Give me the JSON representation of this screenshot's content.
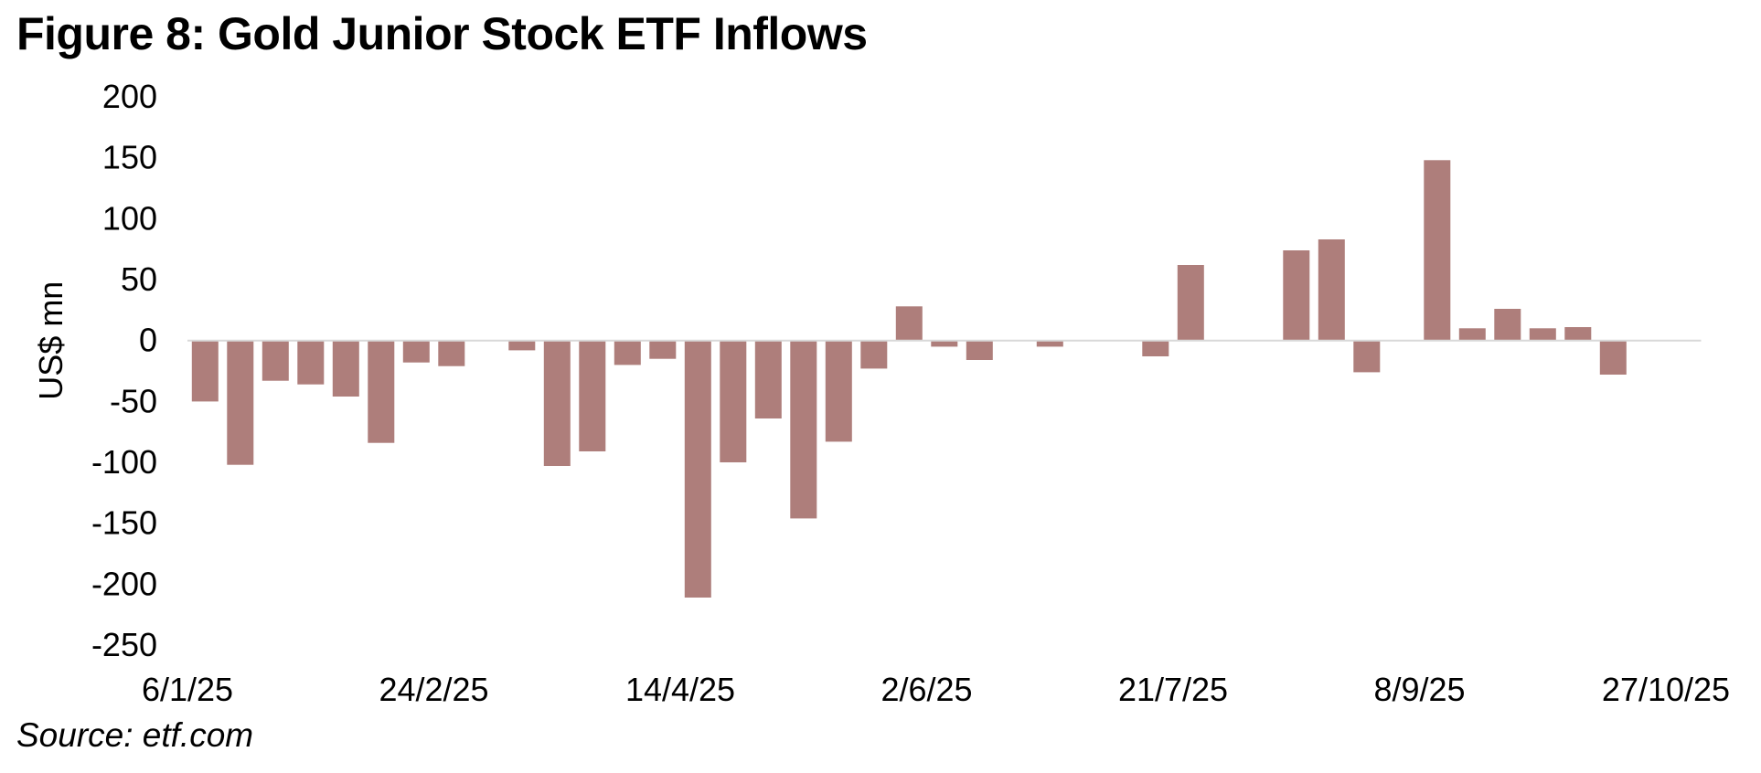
{
  "figure": {
    "title": "Figure 8: Gold Junior Stock ETF Inflows",
    "source": "Source: etf.com"
  },
  "chart_data": {
    "type": "bar",
    "title": "Figure 8: Gold Junior Stock ETF Inflows",
    "xlabel": "",
    "ylabel": "US$ mn",
    "ylim": [
      -250,
      200
    ],
    "yticks": [
      200,
      150,
      100,
      50,
      0,
      -50,
      -100,
      -150,
      -200,
      -250
    ],
    "ytick_labels": [
      "200",
      "150",
      "100",
      "50",
      "0",
      "-50",
      "-100",
      "-150",
      "-200",
      "-250"
    ],
    "xtick_labels": [
      {
        "label": "6/1/25",
        "index": 0
      },
      {
        "label": "24/2/25",
        "index": 7
      },
      {
        "label": "14/4/25",
        "index": 14
      },
      {
        "label": "2/6/25",
        "index": 21
      },
      {
        "label": "21/7/25",
        "index": 28
      },
      {
        "label": "8/9/25",
        "index": 35
      },
      {
        "label": "27/10/25",
        "index": 42
      }
    ],
    "categories": [
      "6/1/25",
      "13/1/25",
      "20/1/25",
      "27/1/25",
      "3/2/25",
      "10/2/25",
      "17/2/25",
      "24/2/25",
      "3/3/25",
      "10/3/25",
      "17/3/25",
      "24/3/25",
      "31/3/25",
      "7/4/25",
      "14/4/25",
      "21/4/25",
      "28/4/25",
      "5/5/25",
      "12/5/25",
      "19/5/25",
      "26/5/25",
      "2/6/25",
      "9/6/25",
      "16/6/25",
      "23/6/25",
      "30/6/25",
      "7/7/25",
      "14/7/25",
      "21/7/25",
      "28/7/25",
      "4/8/25",
      "11/8/25",
      "18/8/25",
      "25/8/25",
      "1/9/25",
      "8/9/25",
      "15/9/25",
      "22/9/25",
      "29/9/25",
      "6/10/25",
      "13/10/25",
      "20/10/25",
      "27/10/25"
    ],
    "series": [
      {
        "name": "Gold Junior Stock ETF Inflows",
        "color": "#ae7e7b",
        "values": [
          -50,
          -102,
          -33,
          -36,
          -46,
          -84,
          -18,
          -21,
          0,
          -8,
          -103,
          -91,
          -20,
          -15,
          -211,
          -100,
          -64,
          -146,
          -83,
          -23,
          28,
          -5,
          -16,
          0,
          -5,
          0,
          0,
          -13,
          62,
          0,
          0,
          74,
          83,
          -26,
          0,
          148,
          10,
          26,
          10,
          11,
          -28,
          0,
          0
        ]
      }
    ],
    "zero_line_color": "#d9d9d9",
    "grid": false,
    "legend": "none"
  }
}
